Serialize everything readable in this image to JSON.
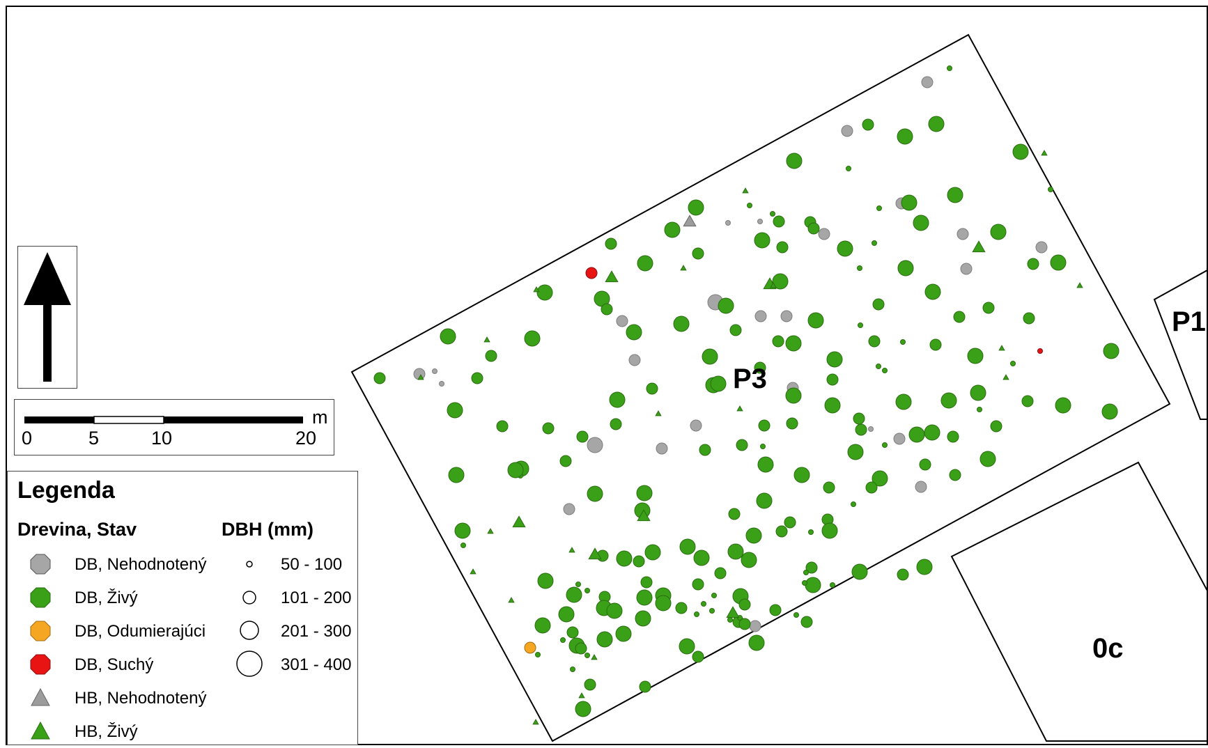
{
  "colors": {
    "db_nehodnoteny": "#a6a6a6",
    "db_zivy": "#3aa018",
    "db_odumierajuci": "#f5a623",
    "db_suchy": "#e81414",
    "hb_nehodnoteny": "#9c9c9c",
    "hb_zivy": "#3aa018"
  },
  "plots": {
    "p3": "P3",
    "p1": "P1",
    "oc": "0c"
  },
  "north_arrow": {
    "icon": "north-arrow-icon"
  },
  "scale": {
    "ticks": [
      "0",
      "5",
      "10",
      "20"
    ],
    "unit": "m"
  },
  "legend": {
    "title": "Legenda",
    "species_header": "Drevina, Stav",
    "dbh_header": "DBH (mm)",
    "species_items": [
      {
        "label": "DB, Nehodnotený",
        "shape": "octagon",
        "color": "#a6a6a6"
      },
      {
        "label": "DB, Živý",
        "shape": "octagon",
        "color": "#3aa018"
      },
      {
        "label": "DB, Odumierajúci",
        "shape": "octagon",
        "color": "#f5a623"
      },
      {
        "label": "DB, Suchý",
        "shape": "octagon",
        "color": "#e81414"
      },
      {
        "label": "HB, Nehodnotený",
        "shape": "triangle",
        "color": "#9c9c9c"
      },
      {
        "label": "HB,  Živý",
        "shape": "triangle",
        "color": "#3aa018"
      }
    ],
    "dbh_items": [
      {
        "label": "50 - 100",
        "size": 1
      },
      {
        "label": "101 - 200",
        "size": 2
      },
      {
        "label": "201 - 300",
        "size": 3
      },
      {
        "label": "301 - 400",
        "size": 4
      }
    ]
  },
  "trees": {
    "db_zivy": [
      [
        1361,
        96,
        1
      ],
      [
        1244,
        177,
        2
      ],
      [
        1342,
        176,
        3
      ],
      [
        1297,
        194,
        3
      ],
      [
        1138,
        229,
        3
      ],
      [
        1216,
        240,
        1
      ],
      [
        1463,
        216,
        3
      ],
      [
        1369,
        278,
        3
      ],
      [
        1506,
        270,
        1
      ],
      [
        1303,
        289,
        3
      ],
      [
        1107,
        305,
        1
      ],
      [
        1116,
        316,
        2
      ],
      [
        1074,
        293,
        1
      ],
      [
        963,
        328,
        3
      ],
      [
        997,
        296,
        3
      ],
      [
        1092,
        343,
        3
      ],
      [
        1161,
        317,
        2
      ],
      [
        1320,
        318,
        3
      ],
      [
        1431,
        331,
        3
      ],
      [
        1121,
        353,
        2
      ],
      [
        1211,
        355,
        3
      ],
      [
        1253,
        347,
        1
      ],
      [
        1260,
        297,
        1
      ],
      [
        1517,
        375,
        3
      ],
      [
        1481,
        377,
        2
      ],
      [
        1298,
        383,
        3
      ],
      [
        1337,
        417,
        3
      ],
      [
        875,
        348,
        2
      ],
      [
        924,
        376,
        3
      ],
      [
        1000,
        362,
        2
      ],
      [
        780,
        418,
        3
      ],
      [
        862,
        427,
        3
      ],
      [
        1118,
        402,
        3
      ],
      [
        1232,
        383,
        1
      ],
      [
        1259,
        435,
        2
      ],
      [
        1233,
        465,
        1
      ],
      [
        1375,
        453,
        2
      ],
      [
        1417,
        440,
        2
      ],
      [
        1341,
        493,
        2
      ],
      [
        1398,
        509,
        3
      ],
      [
        1166,
        326,
        2
      ],
      [
        1040,
        437,
        3
      ],
      [
        1054,
        472,
        2
      ],
      [
        1169,
        458,
        3
      ],
      [
        1253,
        488,
        2
      ],
      [
        1294,
        489,
        1
      ],
      [
        1259,
        524,
        1
      ],
      [
        1137,
        491,
        3
      ],
      [
        1115,
        488,
        2
      ],
      [
        641,
        481,
        3
      ],
      [
        703,
        509,
        2
      ],
      [
        683,
        541,
        2
      ],
      [
        543,
        541,
        2
      ],
      [
        762,
        484,
        3
      ],
      [
        869,
        442,
        2
      ],
      [
        908,
        475,
        3
      ],
      [
        976,
        463,
        3
      ],
      [
        1017,
        510,
        3
      ],
      [
        1022,
        551,
        3
      ],
      [
        1089,
        526,
        2
      ],
      [
        1137,
        566,
        3
      ],
      [
        1193,
        543,
        2
      ],
      [
        1196,
        514,
        3
      ],
      [
        1268,
        530,
        1
      ],
      [
        1475,
        455,
        2
      ],
      [
        1402,
        562,
        3
      ],
      [
        1452,
        520,
        1
      ],
      [
        1593,
        502,
        3
      ],
      [
        1591,
        589,
        3
      ],
      [
        1524,
        580,
        3
      ],
      [
        1473,
        574,
        2
      ],
      [
        1360,
        573,
        3
      ],
      [
        1295,
        575,
        3
      ],
      [
        1404,
        586,
        1
      ],
      [
        884,
        572,
        3
      ],
      [
        934,
        556,
        2
      ],
      [
        882,
        607,
        2
      ],
      [
        785,
        613,
        2
      ],
      [
        651,
        587,
        3
      ],
      [
        719,
        610,
        2
      ],
      [
        834,
        625,
        2
      ],
      [
        1029,
        549,
        3
      ],
      [
        1095,
        609,
        2
      ],
      [
        1135,
        606,
        2
      ],
      [
        1193,
        580,
        3
      ],
      [
        1231,
        599,
        2
      ],
      [
        1234,
        615,
        2
      ],
      [
        1268,
        637,
        1
      ],
      [
        1314,
        622,
        3
      ],
      [
        1336,
        619,
        3
      ],
      [
        1226,
        647,
        3
      ],
      [
        1366,
        625,
        2
      ],
      [
        1416,
        657,
        3
      ],
      [
        1428,
        610,
        2
      ],
      [
        1326,
        665,
        2
      ],
      [
        1261,
        685,
        3
      ],
      [
        1369,
        680,
        2
      ],
      [
        1249,
        698,
        2
      ],
      [
        1010,
        644,
        2
      ],
      [
        1063,
        637,
        2
      ],
      [
        1093,
        639,
        1
      ],
      [
        1097,
        665,
        3
      ],
      [
        1149,
        680,
        3
      ],
      [
        1188,
        698,
        2
      ],
      [
        1223,
        722,
        1
      ],
      [
        1186,
        744,
        2
      ],
      [
        1189,
        760,
        3
      ],
      [
        1132,
        748,
        2
      ],
      [
        1095,
        717,
        3
      ],
      [
        1080,
        767,
        3
      ],
      [
        746,
        671,
        3
      ],
      [
        653,
        680,
        3
      ],
      [
        810,
        660,
        2
      ],
      [
        745,
        681,
        1
      ],
      [
        738,
        673,
        3
      ],
      [
        1052,
        736,
        2
      ],
      [
        1054,
        790,
        3
      ],
      [
        1120,
        761,
        2
      ],
      [
        1162,
        762,
        1
      ],
      [
        1163,
        813,
        2
      ],
      [
        1165,
        838,
        3
      ],
      [
        1232,
        819,
        3
      ],
      [
        1294,
        823,
        2
      ],
      [
        1325,
        812,
        3
      ],
      [
        1155,
        820,
        1
      ],
      [
        923,
        706,
        3
      ],
      [
        852,
        707,
        3
      ],
      [
        920,
        731,
        3
      ],
      [
        662,
        760,
        3
      ],
      [
        663,
        781,
        1
      ],
      [
        1032,
        821,
        2
      ],
      [
        985,
        783,
        3
      ],
      [
        935,
        791,
        3
      ],
      [
        1005,
        799,
        3
      ],
      [
        1058,
        891,
        2
      ],
      [
        1111,
        874,
        2
      ],
      [
        1156,
        891,
        2
      ],
      [
        1084,
        921,
        3
      ],
      [
        1141,
        881,
        1
      ],
      [
        1000,
        837,
        2
      ],
      [
        950,
        853,
        3
      ],
      [
        1023,
        853,
        1
      ],
      [
        1061,
        854,
        3
      ],
      [
        1067,
        866,
        2
      ],
      [
        781,
        832,
        3
      ],
      [
        863,
        796,
        2
      ],
      [
        894,
        800,
        3
      ],
      [
        915,
        804,
        2
      ],
      [
        926,
        834,
        2
      ],
      [
        923,
        856,
        3
      ],
      [
        866,
        855,
        2
      ],
      [
        828,
        837,
        1
      ],
      [
        822,
        852,
        3
      ],
      [
        841,
        846,
        1
      ],
      [
        777,
        896,
        3
      ],
      [
        820,
        906,
        2
      ],
      [
        865,
        871,
        3
      ],
      [
        880,
        875,
        3
      ],
      [
        1020,
        875,
        1
      ],
      [
        984,
        926,
        3
      ],
      [
        1000,
        941,
        2
      ],
      [
        1060,
        885,
        1
      ],
      [
        1073,
        802,
        3
      ],
      [
        1153,
        835,
        1
      ],
      [
        1193,
        838,
        1
      ],
      [
        918,
        880,
        1
      ],
      [
        893,
        908,
        3
      ],
      [
        826,
        925,
        3
      ],
      [
        921,
        886,
        3
      ],
      [
        832,
        929,
        2
      ],
      [
        820,
        959,
        1
      ],
      [
        811,
        880,
        3
      ],
      [
        770,
        938,
        1
      ],
      [
        950,
        864,
        3
      ],
      [
        976,
        871,
        2
      ],
      [
        998,
        880,
        1
      ],
      [
        1008,
        865,
        1
      ],
      [
        1067,
        894,
        2
      ],
      [
        841,
        939,
        1
      ],
      [
        866,
        916,
        3
      ],
      [
        845,
        981,
        2
      ],
      [
        924,
        984,
        2
      ],
      [
        835,
        1016,
        3
      ],
      [
        806,
        917,
        1
      ],
      [
        1046,
        888,
        1
      ]
    ],
    "db_nehodnoteny": [
      [
        1329,
        116,
        2
      ],
      [
        1214,
        186,
        2
      ],
      [
        1292,
        290,
        2
      ],
      [
        1181,
        334,
        2
      ],
      [
        1380,
        334,
        2
      ],
      [
        1385,
        384,
        2
      ],
      [
        1493,
        353,
        2
      ],
      [
        1089,
        316,
        1
      ],
      [
        1043,
        318,
        1
      ],
      [
        1090,
        452,
        2
      ],
      [
        1127,
        452,
        2
      ],
      [
        1136,
        555,
        2
      ],
      [
        1025,
        432,
        3
      ],
      [
        891,
        459,
        2
      ],
      [
        909,
        515,
        2
      ],
      [
        600,
        535,
        2
      ],
      [
        622,
        531,
        1
      ],
      [
        632,
        549,
        1
      ],
      [
        1289,
        628,
        2
      ],
      [
        997,
        609,
        2
      ],
      [
        1248,
        614,
        1
      ],
      [
        852,
        637,
        3
      ],
      [
        948,
        642,
        2
      ],
      [
        1320,
        697,
        2
      ],
      [
        815,
        729,
        2
      ],
      [
        1082,
        897,
        2
      ]
    ],
    "db_odumierajuci": [
      [
        759,
        928,
        2
      ]
    ],
    "db_suchy": [
      [
        847,
        390,
        2
      ],
      [
        1491,
        502,
        1
      ]
    ],
    "hb_zivy": [
      [
        1403,
        353,
        2
      ],
      [
        876,
        396,
        2
      ],
      [
        1103,
        406,
        2
      ],
      [
        768,
        414,
        1
      ],
      [
        1068,
        272,
        1
      ],
      [
        697,
        486,
        1
      ],
      [
        979,
        383,
        1
      ],
      [
        602,
        540,
        1
      ],
      [
        1548,
        408,
        1
      ],
      [
        1497,
        218,
        1
      ],
      [
        922,
        739,
        2
      ],
      [
        943,
        592,
        1
      ],
      [
        1060,
        585,
        1
      ],
      [
        743,
        748,
        2
      ],
      [
        702,
        761,
        1
      ],
      [
        852,
        794,
        2
      ],
      [
        819,
        788,
        1
      ],
      [
        677,
        819,
        1
      ],
      [
        1050,
        878,
        2
      ],
      [
        732,
        860,
        1
      ],
      [
        851,
        942,
        1
      ],
      [
        833,
        997,
        1
      ],
      [
        767,
        1035,
        1
      ],
      [
        1108,
        408,
        1
      ],
      [
        1442,
        540,
        1
      ],
      [
        1436,
        498,
        1
      ]
    ],
    "hb_nehodnoteny": [
      [
        988,
        316,
        2
      ]
    ]
  }
}
